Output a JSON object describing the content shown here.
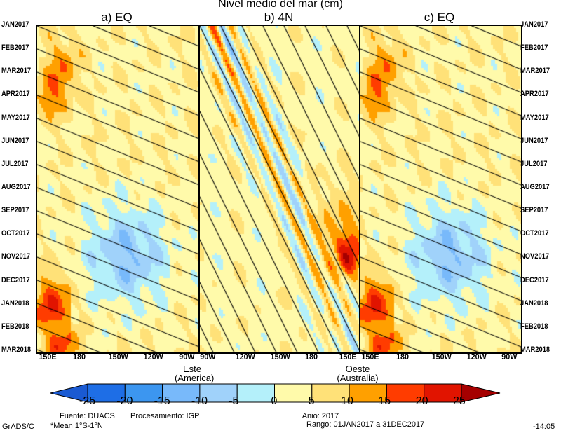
{
  "chart_data": {
    "type": "heatmap",
    "title": "Nivel medio del mar (cm)",
    "panels": [
      {
        "label": "a) EQ",
        "x_ticks": [
          "150E",
          "180",
          "150W",
          "120W",
          "90W"
        ]
      },
      {
        "label": "b) 4N",
        "x_ticks": [
          "90W",
          "120W",
          "150W",
          "180",
          "150E"
        ]
      },
      {
        "label": "c) EQ",
        "x_ticks": [
          "150E",
          "180",
          "150W",
          "120W",
          "90W"
        ]
      }
    ],
    "y_ticks": [
      "JAN2017",
      "FEB2017",
      "MAR2017",
      "APR2017",
      "MAY2017",
      "JUN2017",
      "JUL2017",
      "AUG2017",
      "SEP2017",
      "OCT2017",
      "NOV2017",
      "DEC2017",
      "JAN2018",
      "FEB2018",
      "MAR2018"
    ],
    "east_label": [
      "Este",
      "(America)"
    ],
    "west_label": [
      "Oeste",
      "(Australia)"
    ],
    "colorbar": {
      "levels": [
        "-25",
        "-20",
        "-15",
        "-10",
        "-5",
        "0",
        "5",
        "10",
        "15",
        "20",
        "25"
      ],
      "colors": [
        "#1a5ad2",
        "#1e6ee6",
        "#3c96f0",
        "#78b9fa",
        "#a0d2fa",
        "#b4f0fa",
        "#fffaaa",
        "#ffe178",
        "#ffa000",
        "#ff3c00",
        "#e11400",
        "#a50000"
      ]
    }
  },
  "footer": {
    "source": "Fuente: DUACS",
    "mean": "*Mean 1°S-1°N",
    "processing": "Procesamiento: IGP",
    "year": "Anio: 2017",
    "range": "Rango: 01JAN2017 a 31DEC2017",
    "grads": "GrADS/C",
    "time": "-14:05"
  }
}
